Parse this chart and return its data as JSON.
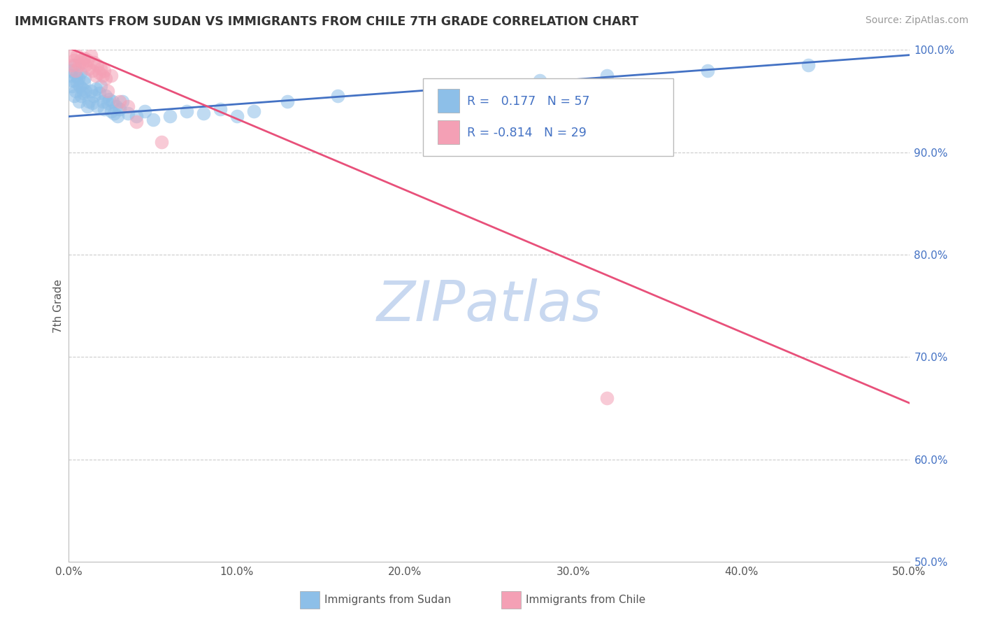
{
  "title": "IMMIGRANTS FROM SUDAN VS IMMIGRANTS FROM CHILE 7TH GRADE CORRELATION CHART",
  "source": "Source: ZipAtlas.com",
  "ylabel": "7th Grade",
  "R_sudan": 0.177,
  "N_sudan": 57,
  "R_chile": -0.814,
  "N_chile": 29,
  "sudan_color": "#8DBFE8",
  "chile_color": "#F4A0B5",
  "line_sudan_color": "#4472C4",
  "line_chile_color": "#E8507A",
  "watermark": "ZIPatlas",
  "watermark_color": "#C8D8F0",
  "legend_labels": [
    "Immigrants from Sudan",
    "Immigrants from Chile"
  ],
  "xmin": 0.0,
  "xmax": 50.0,
  "ymin": 50.0,
  "ymax": 100.0,
  "right_ytick_labels": [
    "50.0%",
    "60.0%",
    "70.0%",
    "80.0%",
    "90.0%",
    "100.0%"
  ],
  "right_ytick_positions": [
    50.0,
    60.0,
    70.0,
    80.0,
    90.0,
    100.0
  ],
  "bottom_xtick_labels": [
    "0.0%",
    "10.0%",
    "20.0%",
    "30.0%",
    "40.0%",
    "50.0%"
  ],
  "bottom_xtick_positions": [
    0.0,
    10.0,
    20.0,
    30.0,
    40.0,
    50.0
  ],
  "grid_y_values": [
    60.0,
    70.0,
    80.0,
    90.0,
    100.0
  ],
  "sudan_line_x0": 0.0,
  "sudan_line_x1": 50.0,
  "sudan_line_y0": 93.5,
  "sudan_line_y1": 99.5,
  "chile_line_x0": 0.0,
  "chile_line_x1": 50.0,
  "chile_line_y0": 100.2,
  "chile_line_y1": 65.5,
  "sudan_points_x": [
    0.1,
    0.15,
    0.2,
    0.25,
    0.3,
    0.35,
    0.4,
    0.45,
    0.5,
    0.55,
    0.6,
    0.65,
    0.7,
    0.75,
    0.8,
    0.85,
    0.9,
    0.95,
    1.0,
    1.1,
    1.2,
    1.3,
    1.4,
    1.5,
    1.6,
    1.7,
    1.8,
    1.9,
    2.0,
    2.1,
    2.2,
    2.3,
    2.4,
    2.5,
    2.6,
    2.7,
    2.8,
    2.9,
    3.0,
    3.2,
    3.5,
    4.0,
    4.5,
    5.0,
    6.0,
    7.0,
    8.0,
    9.0,
    10.0,
    11.0,
    13.0,
    16.0,
    22.0,
    28.0,
    32.0,
    38.0,
    44.0
  ],
  "sudan_points_y": [
    97.5,
    98.0,
    96.5,
    97.0,
    95.5,
    98.5,
    96.0,
    97.5,
    96.8,
    97.2,
    95.0,
    96.5,
    97.8,
    95.5,
    96.2,
    95.8,
    96.8,
    97.3,
    96.0,
    94.5,
    95.0,
    96.0,
    94.8,
    95.5,
    96.2,
    94.5,
    95.8,
    96.5,
    95.0,
    94.2,
    95.5,
    94.8,
    95.2,
    94.0,
    95.0,
    93.8,
    94.5,
    93.5,
    94.2,
    95.0,
    93.8,
    93.5,
    94.0,
    93.2,
    93.5,
    94.0,
    93.8,
    94.2,
    93.5,
    94.0,
    95.0,
    95.5,
    96.0,
    97.0,
    97.5,
    98.0,
    98.5
  ],
  "chile_points_x": [
    0.1,
    0.2,
    0.3,
    0.4,
    0.5,
    0.6,
    0.7,
    0.8,
    0.9,
    1.0,
    1.1,
    1.2,
    1.3,
    1.4,
    1.5,
    1.6,
    1.7,
    1.8,
    1.9,
    2.0,
    2.1,
    2.2,
    2.3,
    2.5,
    3.0,
    3.5,
    4.0,
    5.5,
    32.0
  ],
  "chile_points_y": [
    99.5,
    98.5,
    99.0,
    98.0,
    99.5,
    98.5,
    99.0,
    98.8,
    99.2,
    98.5,
    99.0,
    98.2,
    99.5,
    98.0,
    98.8,
    97.5,
    98.5,
    97.8,
    98.2,
    97.5,
    98.0,
    97.2,
    96.0,
    97.5,
    95.0,
    94.5,
    93.0,
    91.0,
    66.0
  ]
}
